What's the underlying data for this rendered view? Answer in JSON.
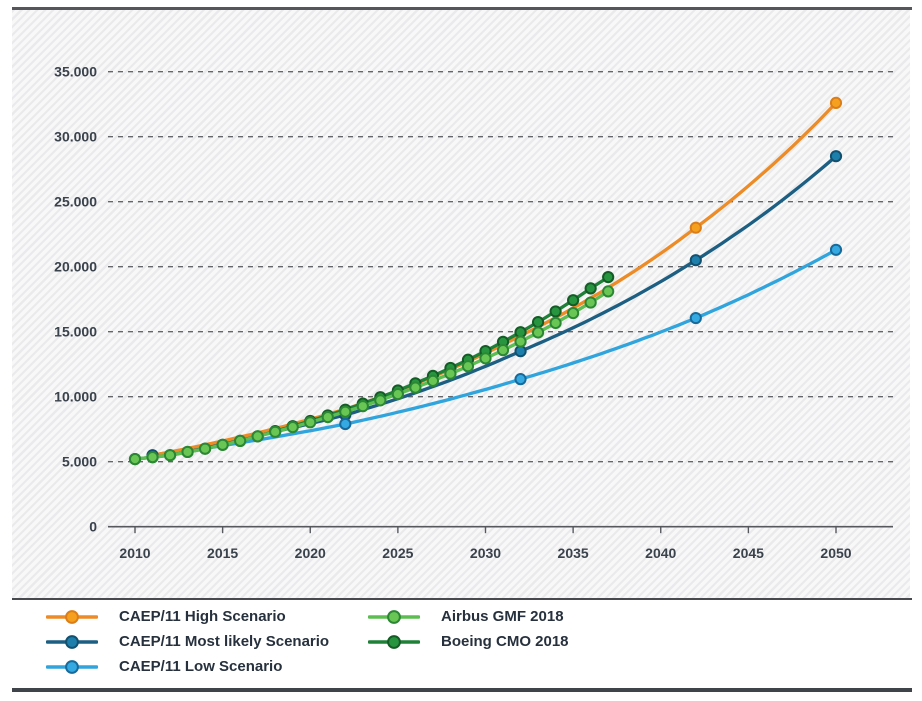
{
  "chart_data": {
    "type": "line",
    "title": "",
    "xlabel": "",
    "ylabel": "",
    "grid": "horizontal-dashed",
    "legend_position": "bottom",
    "x_axis": {
      "ticks": [
        2010,
        2015,
        2020,
        2025,
        2030,
        2035,
        2040,
        2045,
        2050
      ]
    },
    "y_axis": {
      "ticks": [
        {
          "label": "0",
          "value": 0
        },
        {
          "label": "5.000",
          "value": 5000
        },
        {
          "label": "10.000",
          "value": 10000
        },
        {
          "label": "15.000",
          "value": 15000
        },
        {
          "label": "20.000",
          "value": 20000
        },
        {
          "label": "25.000",
          "value": 25000
        },
        {
          "label": "30.000",
          "value": 30000
        },
        {
          "label": "35.000",
          "value": 35000
        }
      ],
      "range": [
        0,
        39500
      ]
    },
    "series": [
      {
        "name": "CAEP/11 High Scenario",
        "color": "#ED8B26",
        "marker_fill": "#F5A11F",
        "marker_stroke": "#DB7E19",
        "interp": "smooth",
        "points": [
          [
            2011,
            5500
          ],
          [
            2022,
            9050
          ],
          [
            2032,
            14700
          ],
          [
            2042,
            23000
          ],
          [
            2050,
            32600
          ]
        ],
        "marker_years": [
          2042,
          2050
        ]
      },
      {
        "name": "CAEP/11 Most likely Scenario",
        "color": "#1C5F82",
        "marker_fill": "#1D7FAC",
        "marker_stroke": "#12506F",
        "interp": "smooth",
        "points": [
          [
            2011,
            5500
          ],
          [
            2022,
            8600
          ],
          [
            2032,
            13500
          ],
          [
            2042,
            20500
          ],
          [
            2050,
            28500
          ]
        ],
        "marker_years": [
          2011,
          2022,
          2032,
          2042,
          2050
        ]
      },
      {
        "name": "CAEP/11 Low Scenario",
        "color": "#30A4DC",
        "marker_fill": "#35A9E1",
        "marker_stroke": "#176A99",
        "interp": "smooth",
        "points": [
          [
            2011,
            5450
          ],
          [
            2022,
            7900
          ],
          [
            2032,
            11350
          ],
          [
            2042,
            16050
          ],
          [
            2050,
            21300
          ]
        ],
        "marker_years": [
          2022,
          2032,
          2042,
          2050
        ]
      },
      {
        "name": "Airbus GMF 2018",
        "color": "#5CBE50",
        "marker_fill": "#69C655",
        "marker_stroke": "#2B8733",
        "interp": "linear",
        "points": [
          [
            2010,
            5200
          ],
          [
            2011,
            5350
          ],
          [
            2012,
            5500
          ],
          [
            2013,
            5750
          ],
          [
            2014,
            6000
          ],
          [
            2015,
            6300
          ],
          [
            2016,
            6600
          ],
          [
            2017,
            6950
          ],
          [
            2018,
            7300
          ],
          [
            2019,
            7660
          ],
          [
            2020,
            8030
          ],
          [
            2021,
            8430
          ],
          [
            2022,
            8840
          ],
          [
            2023,
            9270
          ],
          [
            2024,
            9720
          ],
          [
            2025,
            10200
          ],
          [
            2026,
            10700
          ],
          [
            2027,
            11220
          ],
          [
            2028,
            11770
          ],
          [
            2029,
            12340
          ],
          [
            2030,
            12950
          ],
          [
            2031,
            13580
          ],
          [
            2032,
            14240
          ],
          [
            2033,
            14940
          ],
          [
            2034,
            15670
          ],
          [
            2035,
            16430
          ],
          [
            2036,
            17240
          ],
          [
            2037,
            18100
          ]
        ],
        "marker_years": "all"
      },
      {
        "name": "Boeing CMO 2018",
        "color": "#1F8038",
        "marker_fill": "#27943F",
        "marker_stroke": "#145B25",
        "interp": "linear",
        "points": [
          [
            2010,
            5200
          ],
          [
            2011,
            5350
          ],
          [
            2012,
            5500
          ],
          [
            2013,
            5750
          ],
          [
            2014,
            6000
          ],
          [
            2015,
            6300
          ],
          [
            2016,
            6600
          ],
          [
            2017,
            6950
          ],
          [
            2018,
            7350
          ],
          [
            2019,
            7730
          ],
          [
            2020,
            8130
          ],
          [
            2021,
            8560
          ],
          [
            2022,
            9000
          ],
          [
            2023,
            9470
          ],
          [
            2024,
            9960
          ],
          [
            2025,
            10480
          ],
          [
            2026,
            11030
          ],
          [
            2027,
            11600
          ],
          [
            2028,
            12210
          ],
          [
            2029,
            12840
          ],
          [
            2030,
            13510
          ],
          [
            2031,
            14220
          ],
          [
            2032,
            14960
          ],
          [
            2033,
            15740
          ],
          [
            2034,
            16560
          ],
          [
            2035,
            17420
          ],
          [
            2036,
            18330
          ],
          [
            2037,
            19200
          ]
        ],
        "marker_years": "all"
      }
    ]
  },
  "legend": {
    "columns": [
      [
        0,
        1,
        2
      ],
      [
        3,
        4
      ]
    ]
  }
}
